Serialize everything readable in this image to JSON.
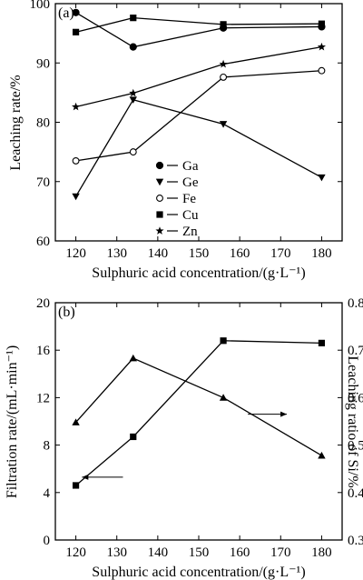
{
  "chart_data": [
    {
      "panel": "(a)",
      "type": "line",
      "title": "",
      "xlabel": "Sulphuric acid concentration/(g·L⁻¹)",
      "ylabel": "Leaching rate/%",
      "xlim": [
        115,
        185
      ],
      "ylim": [
        60,
        100
      ],
      "xticks": [
        120,
        130,
        140,
        150,
        160,
        170,
        180
      ],
      "yticks": [
        60,
        70,
        80,
        90,
        100
      ],
      "x": [
        120,
        134,
        156,
        180
      ],
      "legend_position": "center-left",
      "series": [
        {
          "name": "Ga",
          "marker": "filled-circle",
          "values": [
            98.5,
            92.7,
            95.9,
            96.1
          ]
        },
        {
          "name": "Ge",
          "marker": "filled-triangle-down",
          "values": [
            67.5,
            83.8,
            79.7,
            70.7
          ]
        },
        {
          "name": "Fe",
          "marker": "open-circle",
          "values": [
            73.5,
            75.0,
            87.6,
            88.7
          ]
        },
        {
          "name": "Cu",
          "marker": "filled-square",
          "values": [
            95.2,
            97.6,
            96.5,
            96.6
          ]
        },
        {
          "name": "Zn",
          "marker": "star",
          "values": [
            82.6,
            84.9,
            89.8,
            92.7
          ]
        }
      ]
    },
    {
      "panel": "(b)",
      "type": "line",
      "title": "",
      "xlabel": "Sulphuric acid concentration/(g·L⁻¹)",
      "ylabel": "Filtration rate/(mL·min⁻¹)",
      "y2label": "Leaching ratio of Si/%",
      "xlim": [
        115,
        185
      ],
      "ylim": [
        0,
        20
      ],
      "y2lim": [
        0.3,
        0.8
      ],
      "xticks": [
        120,
        130,
        140,
        150,
        160,
        170,
        180
      ],
      "yticks": [
        0,
        4,
        8,
        12,
        16,
        20
      ],
      "y2ticks": [
        0.3,
        0.4,
        0.5,
        0.6,
        0.7,
        0.8
      ],
      "x": [
        120,
        134,
        156,
        180
      ],
      "series": [
        {
          "name": "",
          "axis": "left",
          "marker": "filled-square",
          "values": [
            4.6,
            8.7,
            16.8,
            16.6
          ]
        },
        {
          "name": "",
          "axis": "right",
          "marker": "filled-triangle-up",
          "values": [
            0.548,
            0.683,
            0.6,
            0.478
          ]
        }
      ]
    }
  ]
}
